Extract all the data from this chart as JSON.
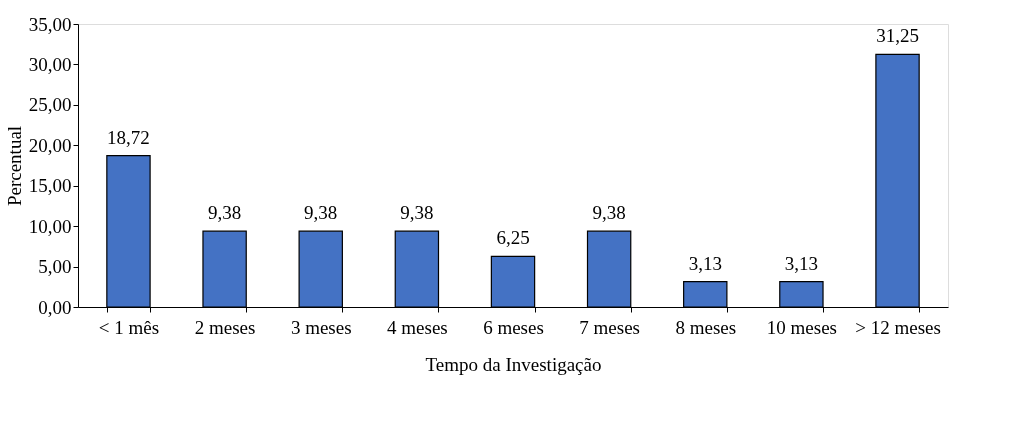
{
  "chart_data": {
    "type": "bar",
    "xlabel": "Tempo da Investigação",
    "ylabel": "Percentual",
    "categories": [
      "< 1 mês",
      "2 meses",
      "3 meses",
      "4 meses",
      "6 meses",
      "7 meses",
      "8 meses",
      "10 meses",
      "> 12 meses"
    ],
    "values": [
      18.72,
      9.38,
      9.38,
      9.38,
      6.25,
      9.38,
      3.13,
      3.13,
      31.25
    ],
    "value_labels": [
      "18,72",
      "9,38",
      "9,38",
      "9,38",
      "6,25",
      "9,38",
      "3,13",
      "3,13",
      "31,25"
    ],
    "color": "#4472c4",
    "ylim": [
      0,
      35
    ],
    "yticks": [
      {
        "value": 0,
        "label": "0,00"
      },
      {
        "value": 5,
        "label": "5,00"
      },
      {
        "value": 10,
        "label": "10,00"
      },
      {
        "value": 15,
        "label": "15,00"
      },
      {
        "value": 20,
        "label": "20,00"
      },
      {
        "value": 25,
        "label": "25,00"
      },
      {
        "value": 30,
        "label": "30,00"
      },
      {
        "value": 35,
        "label": "35,00"
      }
    ],
    "grid": false
  }
}
